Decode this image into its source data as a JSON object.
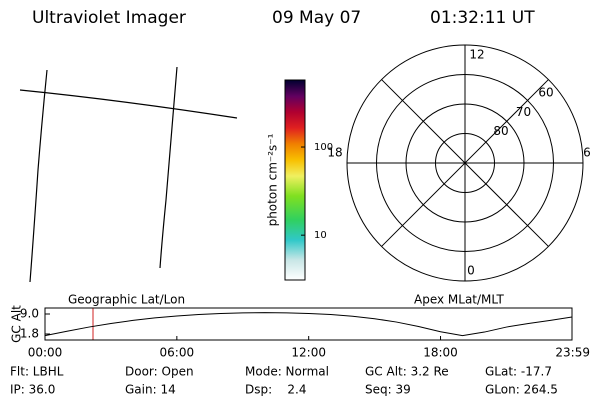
{
  "header": {
    "instrument": "Ultraviolet Imager",
    "date": "09 May 07",
    "time": "01:32:11 UT"
  },
  "chart_data": [
    {
      "type": "colorbar",
      "axis_label": "photon cm⁻²s⁻¹",
      "log": true,
      "clim": [
        3.1,
        576
      ],
      "ticks": [
        10,
        100
      ]
    },
    {
      "type": "polar",
      "rlim": [
        90,
        50
      ],
      "rticks": [
        80,
        70,
        60
      ],
      "angle_ticks": [
        12,
        6,
        0,
        18
      ]
    },
    {
      "type": "line",
      "y_label": "GC Alt",
      "annotations": [
        "Geographic Lat/Lon",
        "Apex MLat/MLT"
      ],
      "x": [
        0,
        1,
        2,
        3,
        4,
        5,
        6,
        7,
        8,
        9,
        10,
        11,
        12,
        13,
        14,
        15,
        16,
        17,
        18,
        19,
        20,
        21,
        22,
        23,
        23.983
      ],
      "series": [
        {
          "color": "#000000",
          "values": [
            1.2,
            2.8,
            4.3,
            5.6,
            6.7,
            7.6,
            8.3,
            8.8,
            9.2,
            9.4,
            9.5,
            9.4,
            9.2,
            8.8,
            8.2,
            7.3,
            6.1,
            4.5,
            2.6,
            1.2,
            2.5,
            4.3,
            5.6,
            6.7,
            7.9
          ]
        }
      ],
      "xlim": [
        0,
        23.983
      ],
      "xticks": [
        {
          "value": 0,
          "label": "00:00"
        },
        {
          "value": 6,
          "label": "06:00"
        },
        {
          "value": 12,
          "label": "12:00"
        },
        {
          "value": 18,
          "label": "18:00"
        },
        {
          "value": 23.983,
          "label": "23:59"
        }
      ],
      "ylim": [
        -0.36,
        11.16
      ],
      "yticks": [
        {
          "value": 9,
          "label": "9.0"
        },
        {
          "value": 1.8,
          "label": "1.8"
        }
      ]
    }
  ],
  "status": {
    "rows": [
      [
        "Flt: LBHL",
        "Door: Open",
        "Mode: Normal",
        "GC Alt: 3.2 Re",
        "GLat: -17.7"
      ],
      [
        "IP: 36.0",
        "Gain: 14",
        "Dsp:    2.4",
        "Seq: 39",
        "GLon: 264.5"
      ]
    ]
  }
}
